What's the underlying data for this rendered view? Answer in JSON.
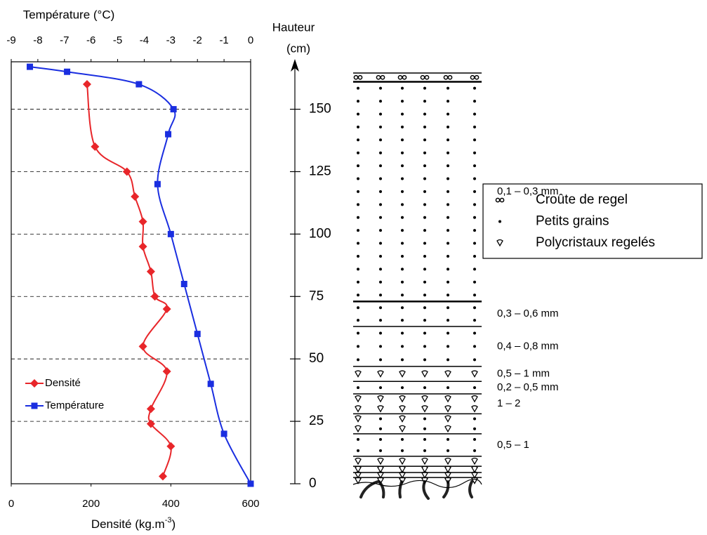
{
  "chart_data": {
    "type": "line",
    "x2label": "Température (°C)",
    "xlabel": "Densité (kg.m",
    "xlabel_sup": "-3",
    "xlabel_end": ")",
    "ylabel": [
      "Hauteur",
      "(cm)"
    ],
    "xlim": [
      0,
      600
    ],
    "xticks": [
      0,
      200,
      400,
      600
    ],
    "x2lim": [
      -9,
      0
    ],
    "x2ticks": [
      -9,
      -8,
      -7,
      -6,
      -5,
      -4,
      -3,
      -2,
      -1,
      0
    ],
    "ylim": [
      0,
      169
    ],
    "yticks": [
      0,
      25,
      50,
      75,
      100,
      125,
      150
    ],
    "grid": true,
    "legend": "lower left",
    "series": [
      {
        "name": "Densité",
        "color": "#e8262a",
        "marker": "diamond",
        "x": [
          190,
          210,
          290,
          310,
          330,
          330,
          350,
          360,
          390,
          330,
          390,
          350,
          350,
          400,
          380
        ],
        "values": [
          160,
          135,
          125,
          115,
          105,
          95,
          85,
          75,
          70,
          55,
          45,
          30,
          24,
          15,
          3
        ]
      },
      {
        "name": "Température",
        "color": "#1a2ee0",
        "marker": "square",
        "axis": "x2",
        "x": [
          -8.3,
          -6.9,
          -4.2,
          -2.9,
          -3.1,
          -3.5,
          -3.0,
          -2.5,
          -2.0,
          -1.5,
          -1.0,
          0
        ],
        "values": [
          167,
          165,
          160,
          150,
          140,
          120,
          100,
          80,
          60,
          40,
          20,
          0
        ]
      }
    ]
  },
  "profile": {
    "layers": [
      {
        "bottom": 0,
        "top": 2.5,
        "symbols": [
          2
        ]
      },
      {
        "bottom": 2.5,
        "top": 4.5,
        "symbols": [
          2
        ]
      },
      {
        "bottom": 4.5,
        "top": 7,
        "symbols": [
          2
        ]
      },
      {
        "bottom": 7,
        "top": 11,
        "symbols": [
          2
        ]
      },
      {
        "bottom": 11,
        "top": 20,
        "symbols": [
          1
        ],
        "label": "0,5 – 1"
      },
      {
        "bottom": 20,
        "top": 28,
        "symbols": [
          2,
          1
        ]
      },
      {
        "bottom": 28,
        "top": 36,
        "symbols": [
          2
        ],
        "label": "1 – 2"
      },
      {
        "bottom": 36,
        "top": 41,
        "symbols": [
          1
        ],
        "label": "0,2 – 0,5 mm"
      },
      {
        "bottom": 41,
        "top": 47,
        "symbols": [
          2
        ],
        "label": "0,5 – 1 mm"
      },
      {
        "bottom": 47,
        "top": 63,
        "symbols": [
          1
        ],
        "label": "0,4 – 0,8 mm"
      },
      {
        "bottom": 63,
        "top": 73,
        "symbols": [
          1
        ],
        "label": "0,3 – 0,6 mm"
      },
      {
        "bottom": 73,
        "top": 161,
        "symbols": [
          1
        ],
        "label": "0,1 – 0,3 mm"
      },
      {
        "bottom": 161,
        "top": 164.5,
        "symbols": [
          0
        ]
      }
    ],
    "legend": [
      "Croûte de regel",
      "Petits grains",
      "Polycristaux regelés"
    ]
  }
}
